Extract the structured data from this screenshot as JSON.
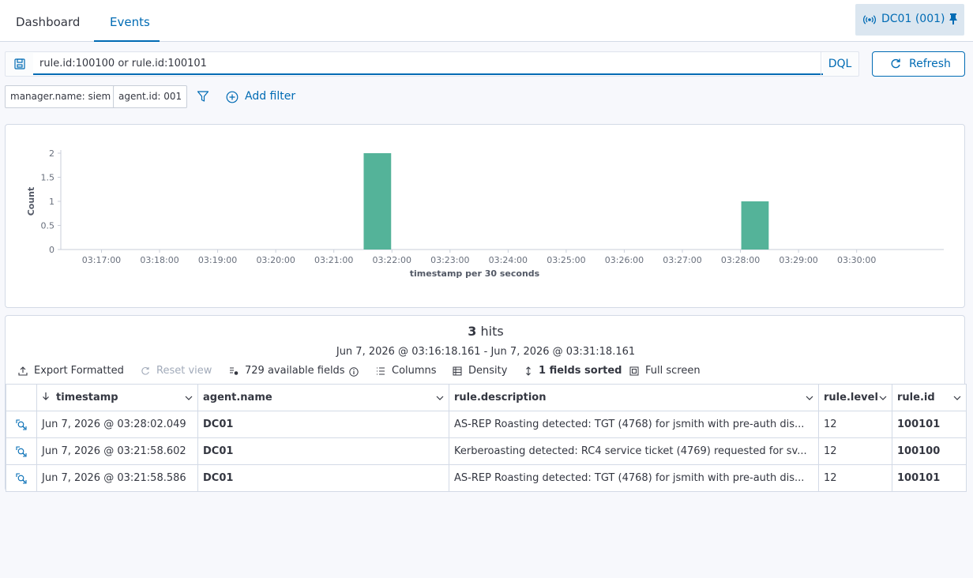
{
  "tabs": [
    {
      "label": "Dashboard",
      "active": false
    },
    {
      "label": "Events",
      "active": true
    }
  ],
  "agent_pill": {
    "label": "DC01 (001)"
  },
  "query": {
    "value": "rule.id:100100 or rule.id:100101",
    "language": "DQL"
  },
  "refresh_label": "Refresh",
  "filters": [
    "manager.name: siem",
    "agent.id: 001"
  ],
  "add_filter_label": "Add filter",
  "chart_data": {
    "type": "bar",
    "xlabel": "timestamp per 30 seconds",
    "ylabel": "Count",
    "yticks": [
      "0",
      "0.5",
      "1",
      "1.5",
      "2"
    ],
    "ylim": [
      0,
      2
    ],
    "x_tick_labels": [
      "03:17:00",
      "03:18:00",
      "03:19:00",
      "03:20:00",
      "03:21:00",
      "03:22:00",
      "03:23:00",
      "03:24:00",
      "03:25:00",
      "03:26:00",
      "03:27:00",
      "03:28:00",
      "03:29:00",
      "03:30:00"
    ],
    "bars": [
      {
        "x": "03:21:30",
        "value": 2
      },
      {
        "x": "03:28:00",
        "value": 1
      }
    ],
    "color": "#54b399",
    "grid": false
  },
  "results": {
    "hits_count": "3",
    "hits_label": "hits",
    "range": "Jun 7, 2026 @ 03:16:18.161 - Jun 7, 2026 @ 03:31:18.161",
    "toolbar": {
      "export": "Export Formatted",
      "reset": "Reset view",
      "fields": "729 available fields",
      "columns": "Columns",
      "density": "Density",
      "sorted": "1 fields sorted",
      "fullscreen": "Full screen"
    },
    "columns": [
      "timestamp",
      "agent.name",
      "rule.description",
      "rule.level",
      "rule.id"
    ],
    "rows": [
      {
        "timestamp": "Jun 7, 2026 @ 03:28:02.049",
        "agent": "DC01",
        "description": "AS-REP Roasting detected: TGT (4768) for jsmith with pre-auth dis...",
        "level": "12",
        "id": "100101"
      },
      {
        "timestamp": "Jun 7, 2026 @ 03:21:58.602",
        "agent": "DC01",
        "description": "Kerberoasting detected: RC4 service ticket (4769) requested for sv...",
        "level": "12",
        "id": "100100"
      },
      {
        "timestamp": "Jun 7, 2026 @ 03:21:58.586",
        "agent": "DC01",
        "description": "AS-REP Roasting detected: TGT (4768) for jsmith with pre-auth dis...",
        "level": "12",
        "id": "100101"
      }
    ]
  }
}
